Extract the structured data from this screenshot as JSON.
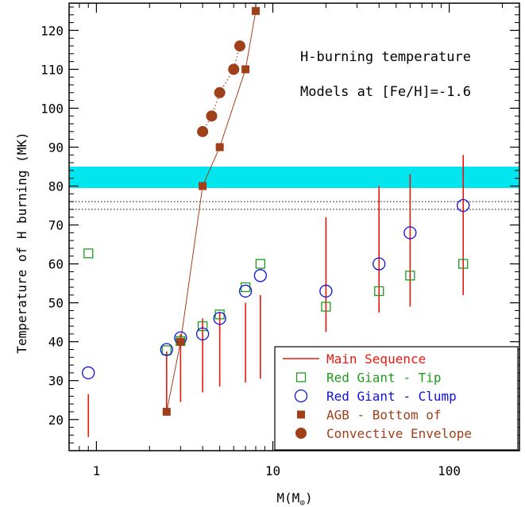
{
  "chart_data": {
    "type": "scatter",
    "xscale": "log",
    "xlim": [
      0.7,
      250
    ],
    "ylim": [
      12,
      127
    ],
    "xlabel": "M(M",
    "xlabel_sub": "⊙",
    "xlabel_close": ")",
    "ylabel": "Temperature of H burning (MK)",
    "annotations": [
      "H-burning temperature",
      "Models at [Fe/H]=-1.6"
    ],
    "x_ticks": [
      {
        "value": 1,
        "label": "1"
      },
      {
        "value": 10,
        "label": "10"
      },
      {
        "value": 100,
        "label": "100"
      }
    ],
    "y_ticks": [
      {
        "value": 20,
        "label": "20"
      },
      {
        "value": 30,
        "label": "30"
      },
      {
        "value": 40,
        "label": "40"
      },
      {
        "value": 50,
        "label": "50"
      },
      {
        "value": 60,
        "label": "60"
      },
      {
        "value": 70,
        "label": "70"
      },
      {
        "value": 80,
        "label": "80"
      },
      {
        "value": 90,
        "label": "90"
      },
      {
        "value": 100,
        "label": "100"
      },
      {
        "value": 110,
        "label": "110"
      },
      {
        "value": 120,
        "label": "120"
      }
    ],
    "band": {
      "y0": 79.5,
      "y1": 85,
      "color": "#00e5ee"
    },
    "hlines": [
      74,
      76
    ],
    "series": [
      {
        "name": "Main Sequence",
        "style": "range",
        "color": "#e8190c",
        "ranges": [
          [
            0.9,
            15.5,
            26.5
          ],
          [
            2.5,
            22,
            37.5
          ],
          [
            3.0,
            24.5,
            42
          ],
          [
            4.0,
            27,
            46
          ],
          [
            5.0,
            28.5,
            47.5
          ],
          [
            7.0,
            29.5,
            50
          ],
          [
            8.5,
            30.5,
            52
          ],
          [
            20,
            42.5,
            72
          ],
          [
            40,
            47.5,
            80
          ],
          [
            60,
            49,
            83
          ],
          [
            120,
            52,
            88
          ]
        ]
      },
      {
        "name": "Red Giant - Tip",
        "style": "open-square",
        "color": "#1e9b1e",
        "points": [
          [
            0.9,
            62.7
          ],
          [
            2.5,
            37.8
          ],
          [
            3.0,
            40.2
          ],
          [
            4.0,
            44
          ],
          [
            5.0,
            47
          ],
          [
            7.0,
            54
          ],
          [
            8.5,
            60
          ],
          [
            20,
            49
          ],
          [
            40,
            53
          ],
          [
            60,
            57
          ],
          [
            120,
            60
          ]
        ]
      },
      {
        "name": "Red Giant - Clump",
        "style": "open-circle",
        "color": "#1010e0",
        "points": [
          [
            0.9,
            32
          ],
          [
            2.5,
            38
          ],
          [
            3.0,
            41
          ],
          [
            4.0,
            42
          ],
          [
            5.0,
            46
          ],
          [
            7.0,
            53
          ],
          [
            8.5,
            57
          ],
          [
            20,
            53
          ],
          [
            40,
            60
          ],
          [
            60,
            68
          ],
          [
            120,
            75
          ]
        ]
      },
      {
        "name": "AGB - Bottom of",
        "style": "filled-square",
        "color": "#a0401a",
        "points": [
          [
            2.5,
            22
          ],
          [
            3.0,
            40
          ],
          [
            4.0,
            80
          ],
          [
            5.0,
            90
          ],
          [
            7.0,
            110
          ],
          [
            8.0,
            125
          ]
        ]
      },
      {
        "name": "Convective Envelope",
        "style": "filled-circle",
        "color": "#a0401a",
        "points": [
          [
            4.0,
            94
          ],
          [
            4.5,
            98
          ],
          [
            5.0,
            104
          ],
          [
            6.0,
            110
          ],
          [
            6.5,
            116
          ]
        ]
      }
    ],
    "legend": {
      "placement": "bottom-right",
      "entries": [
        {
          "label": "Main Sequence",
          "style": "range",
          "color": "#e8190c"
        },
        {
          "label": "Red Giant - Tip",
          "style": "open-square",
          "color": "#1e9b1e"
        },
        {
          "label": "Red Giant - Clump",
          "style": "open-circle",
          "color": "#1010e0"
        },
        {
          "label": "AGB - Bottom of",
          "style": "filled-square",
          "color": "#a0401a"
        },
        {
          "label": "Convective Envelope",
          "style": "none",
          "color": "#a0401a"
        }
      ]
    }
  }
}
